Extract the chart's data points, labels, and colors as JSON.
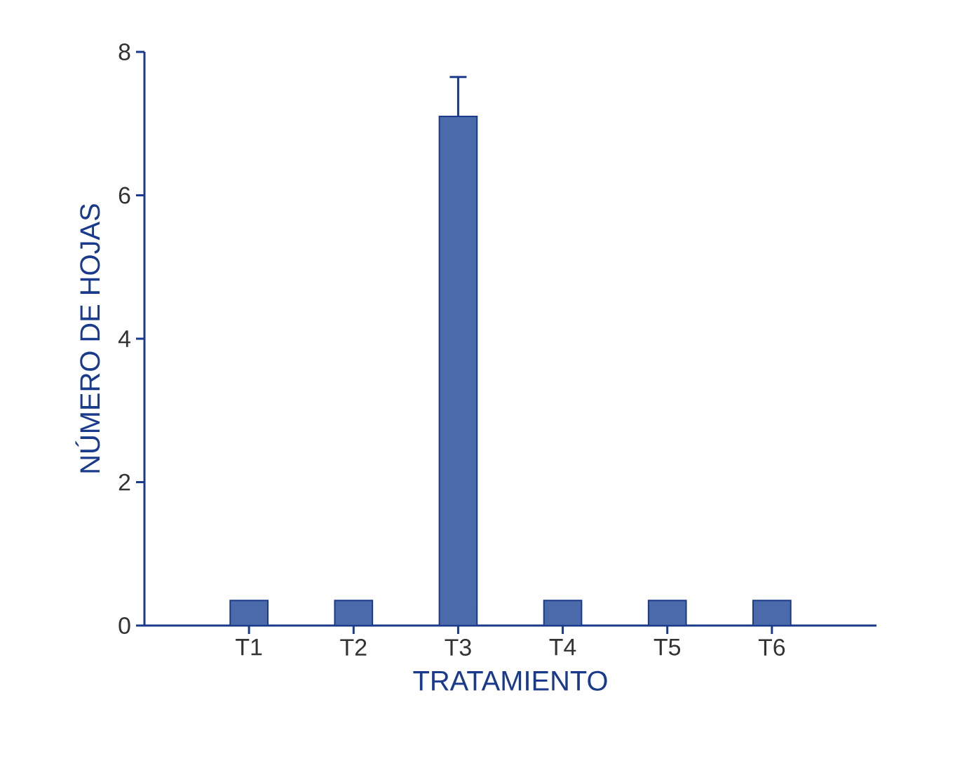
{
  "chart_data": {
    "type": "bar",
    "xlabel": "TRATAMIENTO",
    "ylabel": "NÚMERO DE HOJAS",
    "categories": [
      "T1",
      "T2",
      "T3",
      "T4",
      "T5",
      "T6"
    ],
    "values": [
      0.35,
      0.35,
      7.1,
      0.35,
      0.35,
      0.35
    ],
    "errors": [
      null,
      null,
      [
        7.1,
        7.65
      ],
      null,
      null,
      null
    ],
    "color": "#4a6aaa",
    "ylim": [
      0,
      8
    ],
    "yticks": [
      0,
      2,
      4,
      6,
      8
    ]
  }
}
